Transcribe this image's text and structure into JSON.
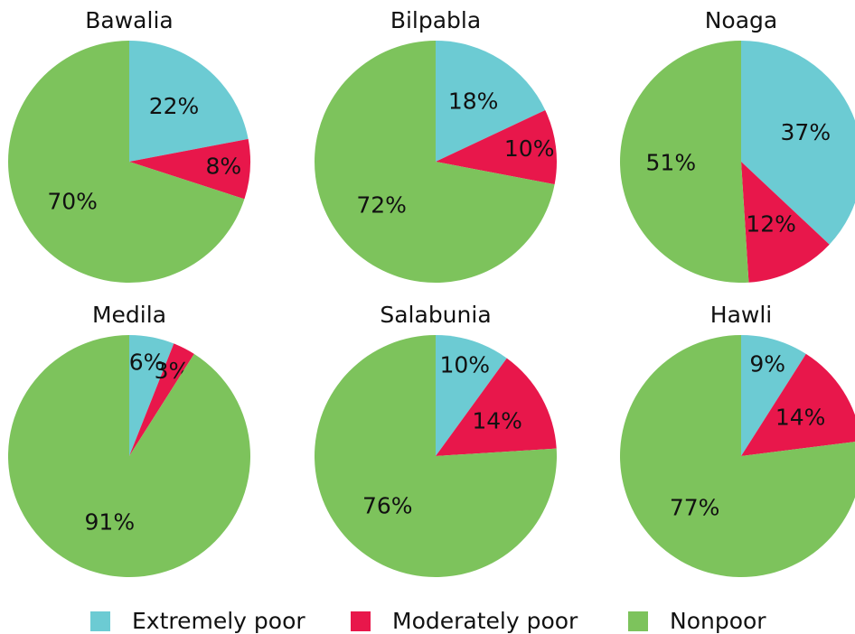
{
  "chart_data": [
    {
      "type": "pie",
      "title": "Bawalia",
      "values": [
        22,
        8,
        70
      ],
      "value_labels": [
        "22%",
        "8%",
        "70%"
      ]
    },
    {
      "type": "pie",
      "title": "Bilpabla",
      "values": [
        18,
        10,
        72
      ],
      "value_labels": [
        "18%",
        "10%",
        "72%"
      ]
    },
    {
      "type": "pie",
      "title": "Noaga",
      "values": [
        37,
        12,
        51
      ],
      "value_labels": [
        "37%",
        "12%",
        "51%"
      ]
    },
    {
      "type": "pie",
      "title": "Medila",
      "values": [
        6,
        3,
        91
      ],
      "value_labels": [
        "6%",
        "3%",
        "91%"
      ]
    },
    {
      "type": "pie",
      "title": "Salabunia",
      "values": [
        10,
        14,
        76
      ],
      "value_labels": [
        "10%",
        "14%",
        "76%"
      ]
    },
    {
      "type": "pie",
      "title": "Hawli",
      "values": [
        9,
        14,
        77
      ],
      "value_labels": [
        "9%",
        "14%",
        "77%"
      ]
    }
  ],
  "legend": {
    "categories": [
      "Extremely poor",
      "Moderately poor",
      "Nonpoor"
    ],
    "colors": [
      "#6ccbd3",
      "#e8174b",
      "#7dc35c"
    ]
  }
}
